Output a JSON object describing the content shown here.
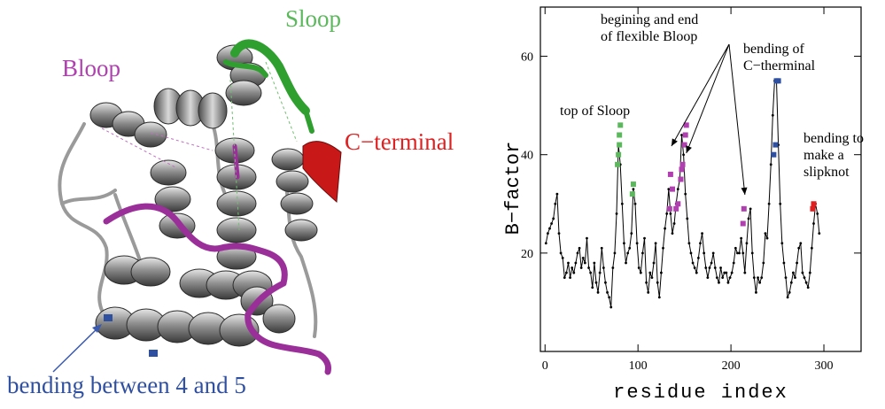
{
  "colors": {
    "sloop": "#5cb85c",
    "bloop": "#b040b0",
    "cterminal": "#e02020",
    "bending": "#2f4fa0",
    "helix": "#8c8c8c",
    "line": "#000000"
  },
  "structure": {
    "sloop_label": "Sloop",
    "bloop_label": "Bloop",
    "cterminal_label": "C−terminal",
    "bending_label": "bending between 4 and 5"
  },
  "chart_data": {
    "type": "line",
    "xlabel": "residue index",
    "ylabel": "B−factor",
    "xlim": [
      -5,
      340
    ],
    "ylim": [
      0,
      70
    ],
    "xticks": [
      0,
      100,
      200,
      300
    ],
    "yticks": [
      20,
      40,
      60
    ],
    "grid": false,
    "series": [
      {
        "values_x": [
          1,
          3,
          5,
          7,
          9,
          11,
          13,
          15,
          17,
          19,
          21,
          23,
          25,
          27,
          29,
          31,
          33,
          35,
          37,
          39,
          41,
          43,
          45,
          47,
          49,
          51,
          53,
          55,
          57,
          59,
          61,
          63,
          65,
          67,
          69,
          71,
          73,
          75,
          77,
          79,
          81,
          83,
          85,
          87,
          89,
          91,
          93,
          95,
          97,
          99,
          101,
          103,
          105,
          107,
          109,
          111,
          113,
          115,
          117,
          119,
          121,
          123,
          125,
          127,
          129,
          131,
          133,
          135,
          137,
          139,
          141,
          143,
          145,
          147,
          149,
          151,
          153,
          155,
          157,
          159,
          161,
          163,
          165,
          167,
          169,
          171,
          173,
          175,
          177,
          179,
          181,
          183,
          185,
          187,
          189,
          191,
          193,
          195,
          197,
          199,
          201,
          203,
          205,
          207,
          209,
          211,
          213,
          215,
          217,
          219,
          221,
          223,
          225,
          227,
          229,
          231,
          233,
          235,
          237,
          239,
          241,
          243,
          245,
          247,
          249,
          251,
          253,
          255,
          257,
          259,
          261,
          263,
          265,
          267,
          269,
          271,
          273,
          275,
          277,
          279,
          281,
          283,
          285,
          287,
          289,
          291,
          293,
          295
        ],
        "values_y": [
          22,
          24,
          25,
          26,
          27,
          30,
          32,
          24,
          20,
          19,
          15,
          16,
          18,
          15,
          17,
          16,
          18,
          20,
          21,
          17,
          19,
          18,
          23,
          17,
          16,
          13,
          18,
          14,
          12,
          16,
          21,
          17,
          14,
          12,
          11,
          9,
          17,
          20,
          28,
          42,
          38,
          30,
          22,
          18,
          20,
          21,
          24,
          33,
          30,
          22,
          17,
          16,
          20,
          23,
          14,
          12,
          16,
          15,
          18,
          22,
          14,
          11,
          16,
          21,
          25,
          28,
          33,
          28,
          24,
          26,
          30,
          33,
          35,
          44,
          40,
          32,
          27,
          22,
          20,
          18,
          17,
          16,
          19,
          22,
          24,
          20,
          17,
          15,
          17,
          18,
          20,
          17,
          15,
          14,
          17,
          15,
          16,
          16,
          14,
          15,
          16,
          18,
          21,
          20,
          20,
          23,
          20,
          16,
          22,
          27,
          29,
          20,
          15,
          12,
          15,
          14,
          15,
          18,
          24,
          23,
          30,
          38,
          48,
          55,
          55,
          42,
          30,
          22,
          18,
          15,
          11,
          12,
          14,
          16,
          15,
          18,
          21,
          22,
          16,
          15,
          14,
          13,
          16,
          21,
          26,
          30,
          28,
          24
        ]
      }
    ],
    "highlights": [
      {
        "color": "sloop",
        "x": [
          78,
          79,
          80,
          80,
          81,
          94,
          95
        ]
      },
      {
        "color": "bloop",
        "x": [
          134,
          135,
          137,
          141,
          143,
          146,
          147,
          148,
          150,
          151,
          152,
          213,
          214
        ]
      },
      {
        "color": "bending",
        "x": [
          246,
          248,
          249,
          251
        ]
      },
      {
        "color": "cterminal",
        "x": [
          288,
          289
        ]
      }
    ],
    "highlights_y": [
      [
        38,
        40,
        42,
        44,
        46,
        32,
        34
      ],
      [
        29,
        36,
        33,
        29,
        30,
        35,
        37,
        38,
        42,
        44,
        46,
        26,
        29
      ],
      [
        40,
        42,
        55,
        55
      ],
      [
        29,
        30
      ]
    ],
    "annotations": {
      "sloop_top": "top of Sloop",
      "bloop_ends": "begining and end\nof flexible Bloop",
      "cterm_bend": "bending of\nC−therminal",
      "slipknot": "bending to\nmake a\nslipknot"
    }
  }
}
